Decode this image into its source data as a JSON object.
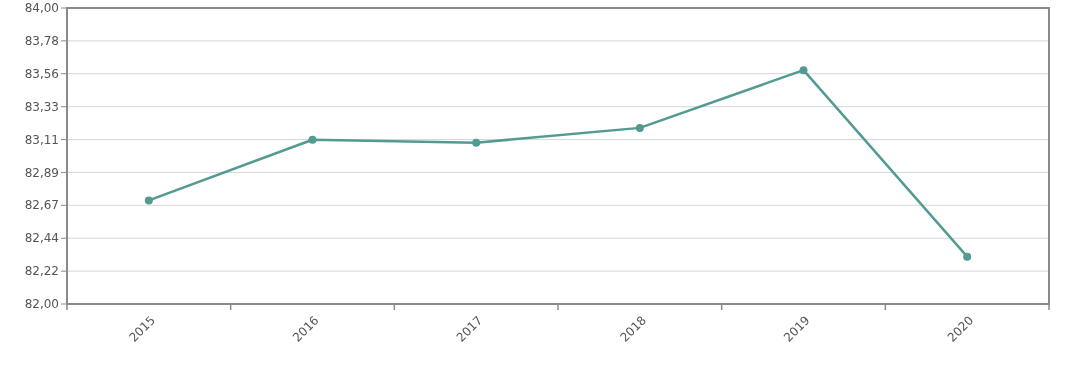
{
  "chart_data": {
    "type": "line",
    "categories": [
      "2015",
      "2016",
      "2017",
      "2018",
      "2019",
      "2020"
    ],
    "series": [
      {
        "color": "#529a92",
        "values": [
          82.7,
          83.11,
          83.09,
          83.19,
          83.58,
          82.32
        ]
      }
    ],
    "ylim": [
      82,
      84
    ],
    "yticks": [
      {
        "value": 82,
        "label": "82,00"
      },
      {
        "value": 82.222,
        "label": "82,22"
      },
      {
        "value": 82.444,
        "label": "82,44"
      },
      {
        "value": 82.667,
        "label": "82,67"
      },
      {
        "value": 82.889,
        "label": "82,89"
      },
      {
        "value": 83.111,
        "label": "83,11"
      },
      {
        "value": 83.333,
        "label": "83,33"
      },
      {
        "value": 83.556,
        "label": "83,56"
      },
      {
        "value": 83.778,
        "label": "83,78"
      },
      {
        "value": 84,
        "label": "84,00"
      }
    ],
    "grid": "y",
    "marker": "circle",
    "line_style": "solid"
  }
}
